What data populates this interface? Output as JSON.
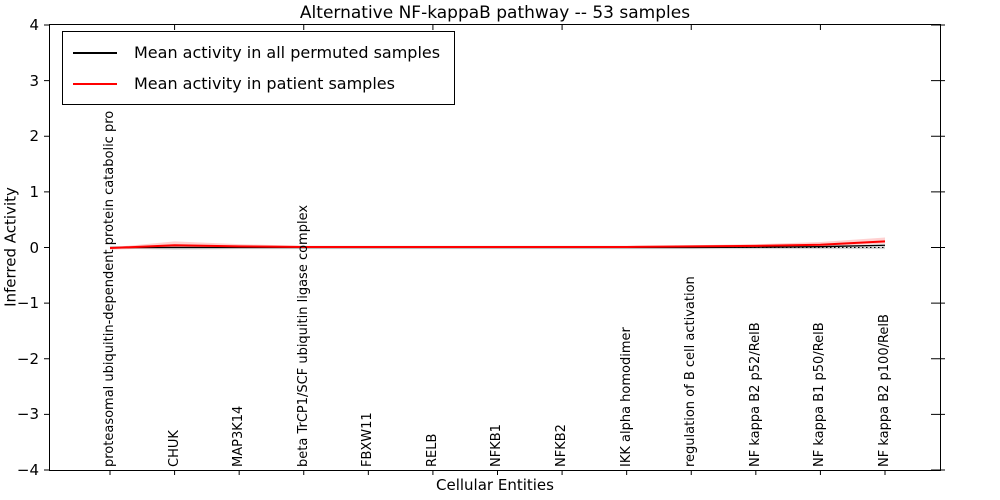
{
  "chart_data": {
    "type": "line",
    "title": "Alternative NF-kappaB pathway -- 53 samples",
    "xlabel": "Cellular Entities",
    "ylabel": "Inferred Activity",
    "ylim": [
      -4,
      4
    ],
    "yticks": [
      4,
      3,
      2,
      1,
      0,
      -1,
      -2,
      -3,
      -4
    ],
    "grid": false,
    "legend_position": "upper left",
    "categories": [
      "proteasomal ubiquitin-dependent protein catabolic pro",
      "CHUK",
      "MAP3K14",
      "beta TrCP1/SCF ubiquitin ligase complex",
      "FBXW11",
      "RELB",
      "NFKB1",
      "NFKB2",
      "IKK alpha homodimer",
      "regulation of B cell activation",
      "NF kappa B2 p52/RelB",
      "NF kappa B1 p50/RelB",
      "NF kappa B2 p100/RelB"
    ],
    "series": [
      {
        "name": "Mean activity in all permuted samples",
        "color": "#000000",
        "band_color": "rgba(0,0,0,0.16)",
        "values": [
          0,
          0,
          0,
          0,
          0,
          0,
          0,
          0,
          0,
          0,
          0.005,
          0.015,
          0.04
        ],
        "band_upper": [
          0.02,
          0.04,
          0.03,
          0.03,
          0.03,
          0.03,
          0.03,
          0.03,
          0.03,
          0.03,
          0.03,
          0.04,
          0.05
        ],
        "band_lower": [
          -0.02,
          -0.04,
          -0.03,
          -0.03,
          -0.03,
          -0.03,
          -0.03,
          -0.03,
          -0.03,
          -0.03,
          -0.03,
          -0.03,
          -0.03
        ]
      },
      {
        "name": "Mean activity in patient samples",
        "color": "#ff0000",
        "band_color": "rgba(255,0,0,0.18)",
        "values": [
          -0.01,
          0.04,
          0.02,
          0.01,
          0.01,
          0.01,
          0.01,
          0.01,
          0.01,
          0.02,
          0.03,
          0.05,
          0.11
        ],
        "band_upper": [
          0.0,
          0.11,
          0.06,
          0.03,
          0.03,
          0.03,
          0.03,
          0.03,
          0.03,
          0.04,
          0.06,
          0.1,
          0.18
        ],
        "band_lower": [
          -0.04,
          -0.01,
          -0.01,
          -0.01,
          -0.01,
          -0.01,
          -0.01,
          -0.01,
          -0.01,
          0.0,
          0.01,
          0.02,
          0.07
        ]
      }
    ],
    "zero_line": {
      "style": "dotted",
      "color": "#000000",
      "value": 0
    }
  }
}
